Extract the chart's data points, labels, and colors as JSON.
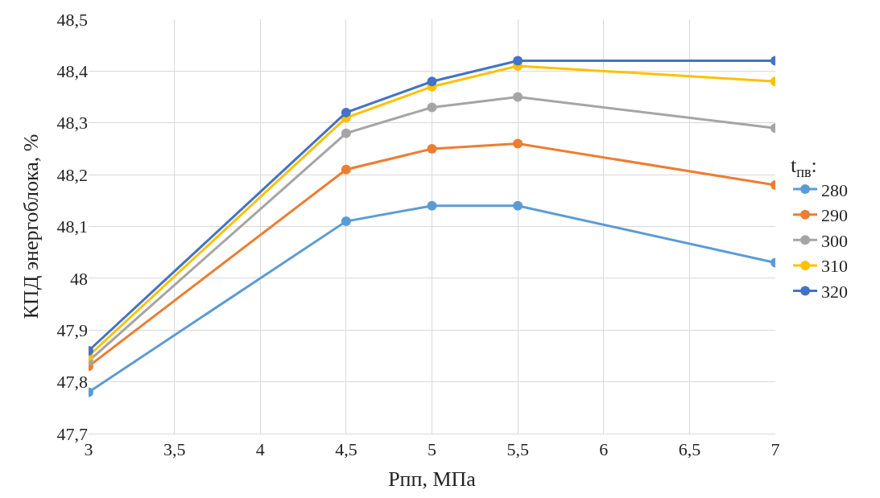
{
  "chart_data": {
    "type": "line",
    "xlabel": "Pпп, МПа",
    "ylabel": "КПД энергоблока, %",
    "legend_title": "t$_{пв}$:",
    "x": [
      3,
      4.5,
      5,
      5.5,
      7
    ],
    "series": [
      {
        "name": "280",
        "color": "#5b9bd5",
        "values": [
          47.78,
          48.11,
          48.14,
          48.14,
          48.03
        ]
      },
      {
        "name": "290",
        "color": "#ed7d31",
        "values": [
          47.83,
          48.21,
          48.25,
          48.26,
          48.18
        ]
      },
      {
        "name": "300",
        "color": "#a5a5a5",
        "values": [
          47.84,
          48.28,
          48.33,
          48.35,
          48.29
        ]
      },
      {
        "name": "310",
        "color": "#ffc000",
        "values": [
          47.85,
          48.31,
          48.37,
          48.41,
          48.38
        ]
      },
      {
        "name": "320",
        "color": "#4472c4",
        "values": [
          47.86,
          48.32,
          48.38,
          48.42,
          48.42
        ]
      }
    ],
    "xlim": [
      3,
      7
    ],
    "xticks": [
      3,
      {
        "value": 3.5,
        "label": "3,5"
      },
      4,
      {
        "value": 4.5,
        "label": "4,5"
      },
      5,
      {
        "value": 5.5,
        "label": "5,5"
      },
      6,
      {
        "value": 6.5,
        "label": "6,5"
      },
      7
    ],
    "ylim": [
      47.7,
      48.5
    ],
    "yticks": [
      {
        "value": 47.7,
        "label": "47,7"
      },
      {
        "value": 47.8,
        "label": "47,8"
      },
      {
        "value": 47.9,
        "label": "47,9"
      },
      48,
      {
        "value": 48.1,
        "label": "48,1"
      },
      {
        "value": 48.2,
        "label": "48,2"
      },
      {
        "value": 48.3,
        "label": "48,3"
      },
      {
        "value": 48.4,
        "label": "48,4"
      },
      {
        "value": 48.5,
        "label": "48,5"
      }
    ],
    "grid": true,
    "legend": "right",
    "marker": "circle",
    "line_style": "solid"
  }
}
